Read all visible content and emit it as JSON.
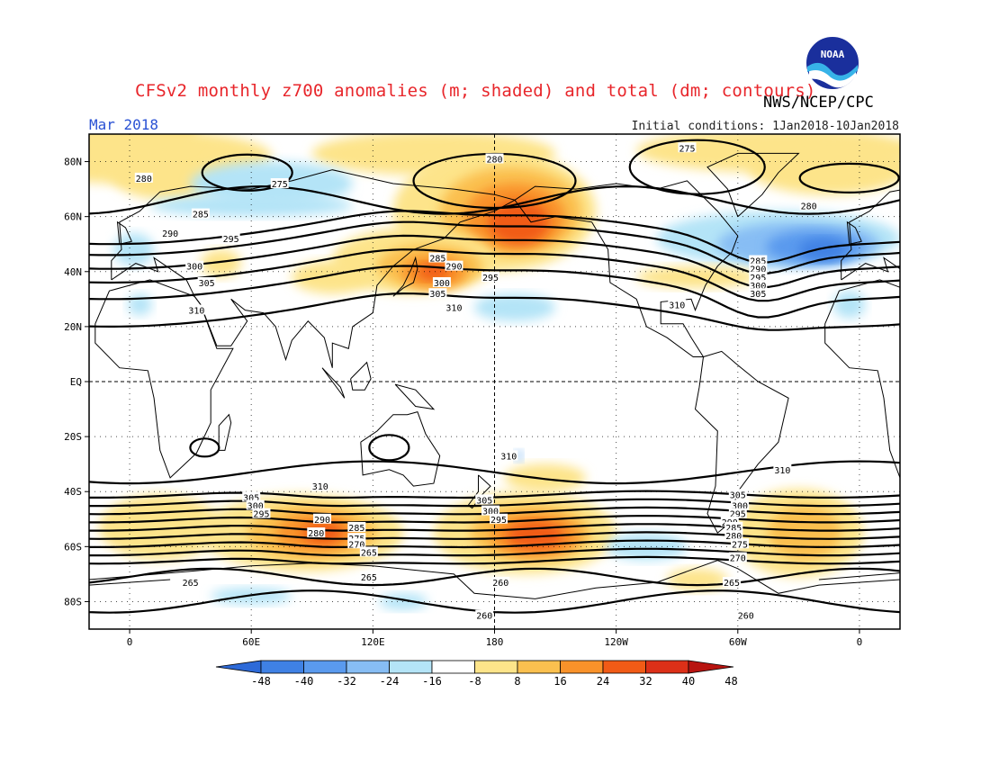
{
  "title": "CFSv2 monthly z700 anomalies (m; shaded) and total (dm; contours)",
  "agency": "NWS/NCEP/CPC",
  "valid_month": "Mar 2018",
  "initial_conditions": "Initial conditions: 1Jan2018-10Jan2018",
  "logo_text": "NOAA",
  "map": {
    "lat_labels": [
      "80N",
      "60N",
      "40N",
      "20N",
      "EQ",
      "20S",
      "40S",
      "60S",
      "80S"
    ],
    "lat_values": [
      80,
      60,
      40,
      20,
      0,
      -20,
      -40,
      -60,
      -80
    ],
    "lon_labels": [
      "0",
      "60E",
      "120E",
      "180",
      "120W",
      "60W",
      "0"
    ],
    "lon_values": [
      0,
      60,
      120,
      180,
      240,
      300,
      360
    ]
  },
  "colorbar": {
    "labels": [
      "-48",
      "-40",
      "-32",
      "-24",
      "-16",
      "-8",
      "8",
      "16",
      "24",
      "32",
      "40",
      "48"
    ],
    "colors": [
      "#2d6ad8",
      "#3f81e4",
      "#5a9aee",
      "#87bdf4",
      "#b4e4f7",
      "#ffffff",
      "#fde48a",
      "#fbc04f",
      "#f9922a",
      "#f15b16",
      "#dc3018",
      "#b81410"
    ]
  },
  "contour_labels": [
    {
      "text": "275",
      "lon": 74,
      "lat": 72
    },
    {
      "text": "280",
      "lon": 7,
      "lat": 74
    },
    {
      "text": "285",
      "lon": 35,
      "lat": 61
    },
    {
      "text": "290",
      "lon": 20,
      "lat": 54
    },
    {
      "text": "295",
      "lon": 50,
      "lat": 52
    },
    {
      "text": "300",
      "lon": 32,
      "lat": 42
    },
    {
      "text": "305",
      "lon": 38,
      "lat": 36
    },
    {
      "text": "310",
      "lon": 33,
      "lat": 26
    },
    {
      "text": "280",
      "lon": 180,
      "lat": 81
    },
    {
      "text": "285",
      "lon": 152,
      "lat": 45
    },
    {
      "text": "290",
      "lon": 160,
      "lat": 42
    },
    {
      "text": "295",
      "lon": 178,
      "lat": 38
    },
    {
      "text": "300",
      "lon": 154,
      "lat": 36
    },
    {
      "text": "305",
      "lon": 152,
      "lat": 32
    },
    {
      "text": "310",
      "lon": 160,
      "lat": 27
    },
    {
      "text": "275",
      "lon": 275,
      "lat": 85
    },
    {
      "text": "280",
      "lon": 335,
      "lat": 64
    },
    {
      "text": "285",
      "lon": 310,
      "lat": 44
    },
    {
      "text": "290",
      "lon": 310,
      "lat": 41
    },
    {
      "text": "295",
      "lon": 310,
      "lat": 38
    },
    {
      "text": "300",
      "lon": 310,
      "lat": 35
    },
    {
      "text": "305",
      "lon": 310,
      "lat": 32
    },
    {
      "text": "310",
      "lon": 270,
      "lat": 28
    },
    {
      "text": "310",
      "lon": 187,
      "lat": -27
    },
    {
      "text": "310",
      "lon": 322,
      "lat": -32
    },
    {
      "text": "310",
      "lon": 94,
      "lat": -38
    },
    {
      "text": "305",
      "lon": 60,
      "lat": -42
    },
    {
      "text": "300",
      "lon": 62,
      "lat": -45
    },
    {
      "text": "295",
      "lon": 65,
      "lat": -48
    },
    {
      "text": "290",
      "lon": 95,
      "lat": -50
    },
    {
      "text": "285",
      "lon": 112,
      "lat": -53
    },
    {
      "text": "280",
      "lon": 92,
      "lat": -55
    },
    {
      "text": "275",
      "lon": 112,
      "lat": -57
    },
    {
      "text": "270",
      "lon": 112,
      "lat": -59
    },
    {
      "text": "265",
      "lon": 118,
      "lat": -62
    },
    {
      "text": "305",
      "lon": 175,
      "lat": -43
    },
    {
      "text": "300",
      "lon": 178,
      "lat": -47
    },
    {
      "text": "295",
      "lon": 182,
      "lat": -50
    },
    {
      "text": "305",
      "lon": 300,
      "lat": -41
    },
    {
      "text": "300",
      "lon": 301,
      "lat": -45
    },
    {
      "text": "295",
      "lon": 300,
      "lat": -48
    },
    {
      "text": "290",
      "lon": 296,
      "lat": -51
    },
    {
      "text": "285",
      "lon": 298,
      "lat": -53
    },
    {
      "text": "280",
      "lon": 298,
      "lat": -56
    },
    {
      "text": "275",
      "lon": 301,
      "lat": -59
    },
    {
      "text": "270",
      "lon": 300,
      "lat": -64
    },
    {
      "text": "265",
      "lon": 297,
      "lat": -73
    },
    {
      "text": "265",
      "lon": 30,
      "lat": -73
    },
    {
      "text": "265",
      "lon": 118,
      "lat": -71
    },
    {
      "text": "260",
      "lon": 183,
      "lat": -73
    },
    {
      "text": "260",
      "lon": 175,
      "lat": -85
    },
    {
      "text": "260",
      "lon": 304,
      "lat": -85
    }
  ]
}
